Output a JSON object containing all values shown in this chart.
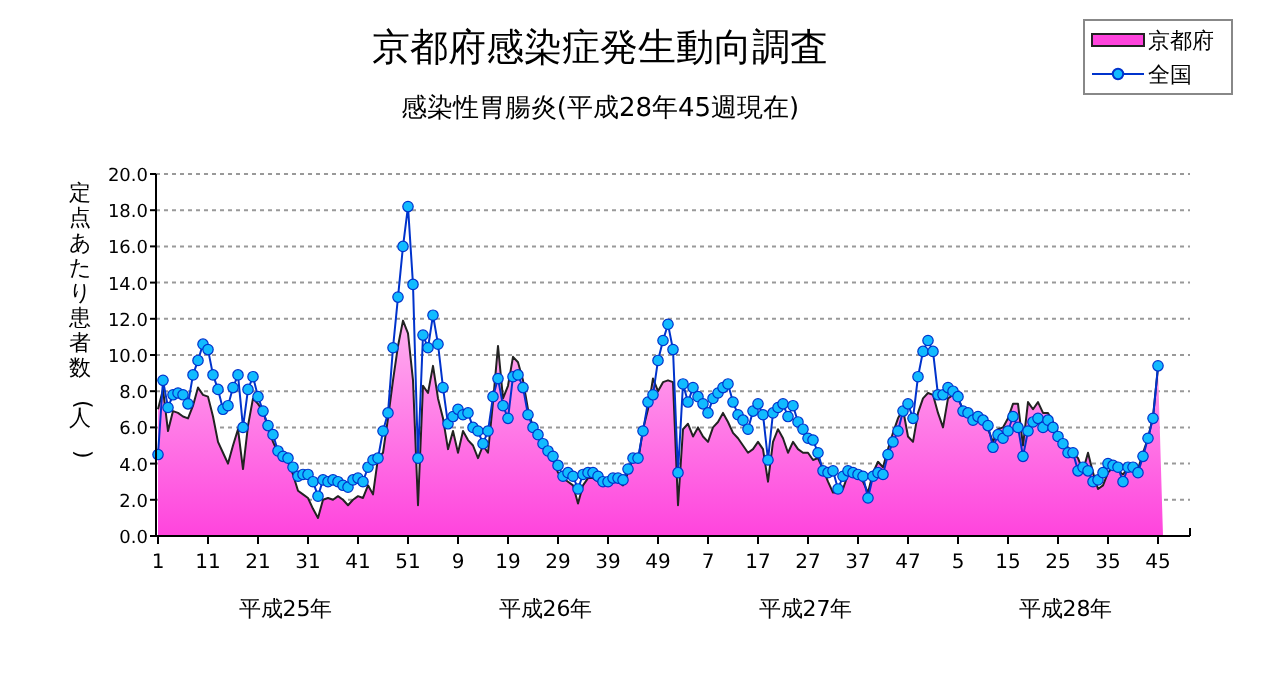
{
  "chart_data": {
    "type": "area",
    "title": "京都府感染症発生動向調査",
    "subtitle": "感染性胃腸炎(平成28年45週現在)",
    "ylabel": "定点あたり患者数(人)",
    "categories": [
      "1",
      null,
      null,
      null,
      null,
      null,
      null,
      null,
      null,
      null,
      "11",
      null,
      null,
      null,
      null,
      null,
      null,
      null,
      null,
      null,
      "21",
      null,
      null,
      null,
      null,
      null,
      null,
      null,
      null,
      null,
      "31",
      null,
      null,
      null,
      null,
      null,
      null,
      null,
      null,
      null,
      "41",
      null,
      null,
      null,
      null,
      null,
      null,
      null,
      null,
      null,
      "51",
      null,
      null,
      null,
      null,
      null,
      null,
      null,
      null,
      null,
      "9",
      null,
      null,
      null,
      null,
      null,
      null,
      null,
      null,
      null,
      "19",
      null,
      null,
      null,
      null,
      null,
      null,
      null,
      null,
      null,
      "29",
      null,
      null,
      null,
      null,
      null,
      null,
      null,
      null,
      null,
      "39",
      null,
      null,
      null,
      null,
      null,
      null,
      null,
      null,
      null,
      "49",
      null,
      null,
      null,
      null,
      null,
      null,
      null,
      null,
      null,
      "7",
      null,
      null,
      null,
      null,
      null,
      null,
      null,
      null,
      null,
      "17",
      null,
      null,
      null,
      null,
      null,
      null,
      null,
      null,
      null,
      "27",
      null,
      null,
      null,
      null,
      null,
      null,
      null,
      null,
      null,
      "37",
      null,
      null,
      null,
      null,
      null,
      null,
      null,
      null,
      null,
      "47",
      null,
      null,
      null,
      null,
      null,
      null,
      null,
      null,
      null,
      "5",
      null,
      null,
      null,
      null,
      null,
      null,
      null,
      null,
      null,
      "15",
      null,
      null,
      null,
      null,
      null,
      null,
      null,
      null,
      null,
      "25",
      null,
      null,
      null,
      null,
      null,
      null,
      null,
      null,
      null,
      "35",
      null,
      null,
      null,
      null,
      null,
      null,
      null,
      null,
      null,
      "45"
    ],
    "series": [
      {
        "name": "京都府",
        "type": "area",
        "color": "#ff44dd",
        "values": [
          7.0,
          8.1,
          5.8,
          6.9,
          6.8,
          6.6,
          6.5,
          7.2,
          8.2,
          7.8,
          7.7,
          6.6,
          5.2,
          4.6,
          4.0,
          5.0,
          5.9,
          3.7,
          6.1,
          7.6,
          7.3,
          6.9,
          6.0,
          5.2,
          4.6,
          4.5,
          4.1,
          3.4,
          2.5,
          2.3,
          2.1,
          1.5,
          1.0,
          2.0,
          2.1,
          2.0,
          2.2,
          2.0,
          1.7,
          2.0,
          2.2,
          2.1,
          2.8,
          2.3,
          4.3,
          4.6,
          6.5,
          8.6,
          10.5,
          11.9,
          11.2,
          8.6,
          1.7,
          8.3,
          7.9,
          9.4,
          7.6,
          6.5,
          4.8,
          5.8,
          4.6,
          5.8,
          5.3,
          5.0,
          4.3,
          5.0,
          4.6,
          7.4,
          10.5,
          7.6,
          8.3,
          9.9,
          9.6,
          8.6,
          7.0,
          6.0,
          5.5,
          5.0,
          4.5,
          4.2,
          3.5,
          3.2,
          3.0,
          2.8,
          1.8,
          2.8,
          3.2,
          3.2,
          3.0,
          2.9,
          2.8,
          3.0,
          3.0,
          2.8,
          3.5,
          4.3,
          4.1,
          5.9,
          7.0,
          8.7,
          8.0,
          8.5,
          8.6,
          8.5,
          1.7,
          5.9,
          6.2,
          5.5,
          6.0,
          5.5,
          5.2,
          6.0,
          6.3,
          6.8,
          6.3,
          5.7,
          5.4,
          5.0,
          4.6,
          4.8,
          5.2,
          4.8,
          3.0,
          5.2,
          5.9,
          5.4,
          4.6,
          5.2,
          4.8,
          4.6,
          4.6,
          4.2,
          4.3,
          3.7,
          3.0,
          2.4,
          2.4,
          2.6,
          3.4,
          3.5,
          3.3,
          3.0,
          2.4,
          3.5,
          4.1,
          3.8,
          4.8,
          5.7,
          6.5,
          7.0,
          5.5,
          5.2,
          6.8,
          7.6,
          7.9,
          7.8,
          6.8,
          6.0,
          7.6,
          7.8,
          7.6,
          7.0,
          6.9,
          6.6,
          6.5,
          6.3,
          5.9,
          5.2,
          5.9,
          6.0,
          6.5,
          7.3,
          7.3,
          5.0,
          7.4,
          7.0,
          7.4,
          6.8,
          6.8,
          6.3,
          5.7,
          5.2,
          4.9,
          4.6,
          4.3,
          3.6,
          4.6,
          3.5,
          2.6,
          2.8,
          3.5,
          3.8,
          3.6,
          3.4,
          3.8,
          3.6,
          3.7,
          4.6,
          5.4,
          6.6,
          9.3
        ]
      },
      {
        "name": "全国",
        "type": "line",
        "color": "#0033cc",
        "marker": "circle",
        "values": [
          4.5,
          8.6,
          7.1,
          7.8,
          7.9,
          7.8,
          7.3,
          8.9,
          9.7,
          10.6,
          10.3,
          8.9,
          8.1,
          7.0,
          7.2,
          8.2,
          8.9,
          6.0,
          8.1,
          8.8,
          7.7,
          6.9,
          6.1,
          5.6,
          4.7,
          4.4,
          4.3,
          3.8,
          3.3,
          3.4,
          3.4,
          3.0,
          2.2,
          3.1,
          3.0,
          3.1,
          3.0,
          2.8,
          2.7,
          3.1,
          3.2,
          3.0,
          3.8,
          4.2,
          4.3,
          5.8,
          6.8,
          10.4,
          13.2,
          16.0,
          18.2,
          13.9,
          4.3,
          11.1,
          10.4,
          12.2,
          10.6,
          8.2,
          6.2,
          6.6,
          7.0,
          6.7,
          6.8,
          6.0,
          5.8,
          5.1,
          5.8,
          7.7,
          8.7,
          7.2,
          6.5,
          8.8,
          8.9,
          8.2,
          6.7,
          6.0,
          5.6,
          5.1,
          4.7,
          4.4,
          3.9,
          3.3,
          3.5,
          3.3,
          2.6,
          3.4,
          3.5,
          3.5,
          3.3,
          3.0,
          3.0,
          3.2,
          3.2,
          3.1,
          3.7,
          4.3,
          4.3,
          5.8,
          7.4,
          7.8,
          9.7,
          10.8,
          11.7,
          10.3,
          3.5,
          8.4,
          7.4,
          8.2,
          7.7,
          7.3,
          6.8,
          7.6,
          7.9,
          8.2,
          8.4,
          7.4,
          6.7,
          6.4,
          5.9,
          6.9,
          7.3,
          6.7,
          4.2,
          6.8,
          7.1,
          7.3,
          6.6,
          7.2,
          6.3,
          5.9,
          5.4,
          5.3,
          4.6,
          3.6,
          3.5,
          3.6,
          2.6,
          3.3,
          3.6,
          3.5,
          3.4,
          3.3,
          2.1,
          3.3,
          3.5,
          3.4,
          4.5,
          5.2,
          5.8,
          6.9,
          7.3,
          6.5,
          8.8,
          10.2,
          10.8,
          10.2,
          7.8,
          7.8,
          8.2,
          8.0,
          7.7,
          6.9,
          6.8,
          6.4,
          6.6,
          6.4,
          6.1,
          4.9,
          5.6,
          5.4,
          5.8,
          6.6,
          6.0,
          4.4,
          5.8,
          6.3,
          6.5,
          6.0,
          6.4,
          6.0,
          5.5,
          5.1,
          4.6,
          4.6,
          3.6,
          3.8,
          3.6,
          3.0,
          3.1,
          3.5,
          4.0,
          3.9,
          3.8,
          3.0,
          3.8,
          3.8,
          3.5,
          4.4,
          5.4,
          6.5,
          9.4
        ]
      }
    ],
    "ylim": [
      0,
      20
    ],
    "yticks": [
      {
        "value": 0,
        "label": "0.0"
      },
      {
        "value": 2,
        "label": "2.0"
      },
      {
        "value": 4,
        "label": "4.0"
      },
      {
        "value": 6,
        "label": "6.0"
      },
      {
        "value": 8,
        "label": "8.0"
      },
      {
        "value": 10,
        "label": "10.0"
      },
      {
        "value": 12,
        "label": "12.0"
      },
      {
        "value": 14,
        "label": "14.0"
      },
      {
        "value": 16,
        "label": "16.0"
      },
      {
        "value": 18,
        "label": "18.0"
      },
      {
        "value": 20,
        "label": "20.0"
      }
    ],
    "grid": "y",
    "line_style": "solid",
    "legend": "top right",
    "annotations": [
      "平成25年",
      "平成26年",
      "平成27年",
      "平成28年"
    ]
  }
}
